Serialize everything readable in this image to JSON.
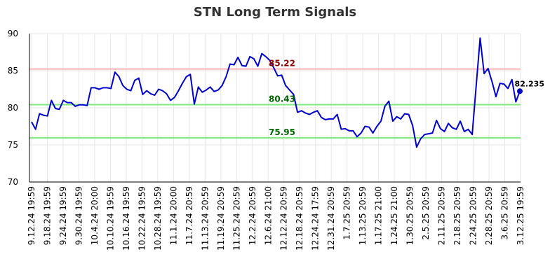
{
  "chart_data": {
    "type": "line",
    "title": "STN Long Term Signals",
    "ylim": [
      70,
      90
    ],
    "y_ticks": [
      70,
      75,
      80,
      85,
      90
    ],
    "grid": true,
    "x_tick_labels": [
      "9.12.24 19:59",
      "9.18.24 19:59",
      "9.24.24 19:59",
      "9.30.24 19:59",
      "10.4.24 20:00",
      "10.10.24 19:59",
      "10.16.24 19:59",
      "10.22.24 19:59",
      "10.28.24 19:59",
      "11.1.24 20:00",
      "11.7.24 20:59",
      "11.13.24 20:59",
      "11.19.24 20:59",
      "11.25.24 20:59",
      "12.2.24 20:59",
      "12.6.24 21:00",
      "12.12.24 20:59",
      "12.18.24 20:59",
      "12.24.24 17:59",
      "12.31.24 20:59",
      "1.7.25 20:59",
      "1.13.25 20:59",
      "1.17.25 21:00",
      "1.24.25 21:00",
      "1.30.25 20:59",
      "2.5.25 20:59",
      "2.11.25 20:59",
      "2.18.25 20:59",
      "2.24.25 20:59",
      "2.28.25 20:59",
      "3.6.25 20:59",
      "3.12.25 19:59"
    ],
    "levels": [
      {
        "value": 85.22,
        "label": "85.22",
        "line_color": "#ffb3b3",
        "text_color": "#8b0000"
      },
      {
        "value": 80.43,
        "label": "80.43",
        "line_color": "#7ee87e",
        "text_color": "#006400"
      },
      {
        "value": 75.95,
        "label": "75.95",
        "line_color": "#7ee87e",
        "text_color": "#006400"
      }
    ],
    "series": [
      {
        "color": "#0000cc",
        "values": [
          78.1,
          77.1,
          79.2,
          79.0,
          78.9,
          81.0,
          79.9,
          79.8,
          81.0,
          80.7,
          80.7,
          80.2,
          80.4,
          80.4,
          80.3,
          82.7,
          82.7,
          82.5,
          82.7,
          82.7,
          82.6,
          84.8,
          84.2,
          83.0,
          82.5,
          82.3,
          83.7,
          84.0,
          81.8,
          82.3,
          81.9,
          81.7,
          82.5,
          82.3,
          81.9,
          81.0,
          81.4,
          82.3,
          83.3,
          84.2,
          84.5,
          80.5,
          82.8,
          82.1,
          82.4,
          82.8,
          82.2,
          82.4,
          83.0,
          84.2,
          85.9,
          85.8,
          86.8,
          85.7,
          85.6,
          86.9,
          86.6,
          85.6,
          87.3,
          86.9,
          86.4,
          85.4,
          84.3,
          84.4,
          83.0,
          82.4,
          81.8,
          79.4,
          79.6,
          79.3,
          79.1,
          79.4,
          79.6,
          78.7,
          78.4,
          78.5,
          78.5,
          79.1,
          77.1,
          77.2,
          76.9,
          76.9,
          76.1,
          76.6,
          77.5,
          77.4,
          76.6,
          77.5,
          78.2,
          80.2,
          80.9,
          78.2,
          78.8,
          78.5,
          79.2,
          79.1,
          77.6,
          74.7,
          75.8,
          76.4,
          76.5,
          76.6,
          78.3,
          77.2,
          76.8,
          77.9,
          77.3,
          77.1,
          78.2,
          76.8,
          77.1,
          76.4,
          83.0,
          89.4,
          84.6,
          85.3,
          83.5,
          81.5,
          83.3,
          83.2,
          82.6,
          83.8,
          80.8,
          82.235
        ]
      }
    ],
    "last_value_label": "82.235"
  }
}
